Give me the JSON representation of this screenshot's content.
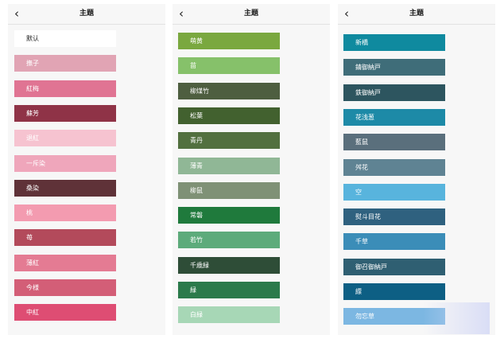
{
  "panels": [
    {
      "title": "主題",
      "items": [
        {
          "label": "默认",
          "color": "#ffffff"
        },
        {
          "label": "撫子",
          "color": "#e1a4b4"
        },
        {
          "label": "紅梅",
          "color": "#e07493"
        },
        {
          "label": "蘇芳",
          "color": "#8f3347"
        },
        {
          "label": "退紅",
          "color": "#f6c3d0"
        },
        {
          "label": "一斥染",
          "color": "#efa6bb"
        },
        {
          "label": "桑染",
          "color": "#5f3238"
        },
        {
          "label": "桃",
          "color": "#f39bb0"
        },
        {
          "label": "苺",
          "color": "#b34a5b"
        },
        {
          "label": "薄紅",
          "color": "#e47b93"
        },
        {
          "label": "今様",
          "color": "#d35e77"
        },
        {
          "label": "中紅",
          "color": "#de4d73"
        }
      ]
    },
    {
      "title": "主題",
      "items": [
        {
          "label": "萌黄",
          "color": "#7aa83f"
        },
        {
          "label": "苗",
          "color": "#86c16a"
        },
        {
          "label": "柳煤竹",
          "color": "#4e5e40"
        },
        {
          "label": "松葉",
          "color": "#42612f"
        },
        {
          "label": "青丹",
          "color": "#52703f"
        },
        {
          "label": "薄青",
          "color": "#90b796"
        },
        {
          "label": "柳鼠",
          "color": "#7f9176"
        },
        {
          "label": "常磐",
          "color": "#1f7a3c"
        },
        {
          "label": "若竹",
          "color": "#5dab7b"
        },
        {
          "label": "千歳緑",
          "color": "#2e4d37"
        },
        {
          "label": "緑",
          "color": "#2b7a4b"
        },
        {
          "label": "白緑",
          "color": "#a7d7b6"
        }
      ]
    },
    {
      "title": "主題",
      "items": [
        {
          "label": "新橋",
          "color": "#0f8a9f"
        },
        {
          "label": "錆御納戸",
          "color": "#3f6d79"
        },
        {
          "label": "鉄御納戸",
          "color": "#2d555f"
        },
        {
          "label": "花浅葱",
          "color": "#1d8aa7"
        },
        {
          "label": "藍鼠",
          "color": "#5a6f7c"
        },
        {
          "label": "舛花",
          "color": "#5f8393"
        },
        {
          "label": "空",
          "color": "#58b4dd"
        },
        {
          "label": "熨斗目花",
          "color": "#2f617f"
        },
        {
          "label": "千草",
          "color": "#3b8db8"
        },
        {
          "label": "御召御納戸",
          "color": "#2f5f72"
        },
        {
          "label": "縹",
          "color": "#0d5f84"
        },
        {
          "label": "勿忘草",
          "color": "#7cb7e2"
        }
      ]
    }
  ],
  "icons": {
    "back": "chevron-left-icon"
  }
}
